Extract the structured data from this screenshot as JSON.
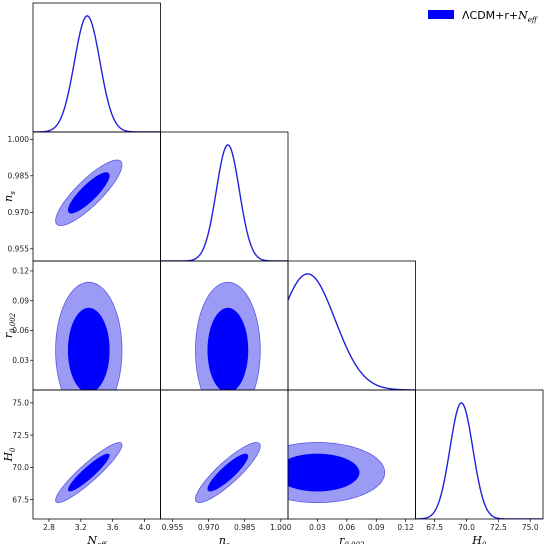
{
  "chart_data": {
    "type": "triangle",
    "parameters": [
      {
        "key": "Neff",
        "label": "N",
        "label_sub": "eff",
        "range": [
          2.6,
          4.2
        ],
        "ticks": [
          "2.8",
          "3.2",
          "3.6",
          "4.0"
        ],
        "tick_values": [
          2.8,
          3.2,
          3.6,
          4.0
        ]
      },
      {
        "key": "ns",
        "label": "n",
        "label_sub": "s",
        "range": [
          0.95,
          1.003
        ],
        "ticks": [
          "0.955",
          "0.970",
          "0.985",
          "1.000"
        ],
        "tick_values": [
          0.955,
          0.97,
          0.985,
          1.0
        ]
      },
      {
        "key": "r",
        "label": "r",
        "label_sub": "0.002",
        "range": [
          0.0,
          0.13
        ],
        "ticks": [
          "0.03",
          "0.06",
          "0.09",
          "0.12"
        ],
        "tick_values": [
          0.03,
          0.06,
          0.09,
          0.12
        ]
      },
      {
        "key": "H0",
        "label": "H",
        "label_sub": "0",
        "range": [
          66.0,
          76.0
        ],
        "ticks": [
          "67.5",
          "70.0",
          "72.5",
          "75.0"
        ],
        "tick_values": [
          67.5,
          70.0,
          72.5,
          75.0
        ]
      }
    ],
    "marginals": [
      {
        "param": "Neff",
        "distribution": "gaussian",
        "mean": 3.28,
        "sigma": 0.16
      },
      {
        "param": "ns",
        "distribution": "gaussian",
        "mean": 0.978,
        "sigma": 0.0048
      },
      {
        "param": "r",
        "distribution": "truncated-gaussian",
        "peak": 0.02,
        "sigma": 0.028
      },
      {
        "param": "H0",
        "distribution": "gaussian",
        "mean": 69.6,
        "sigma": 0.9
      }
    ],
    "contours": [
      {
        "x": "Neff",
        "y": "ns",
        "center": [
          3.3,
          0.978
        ],
        "sigma": [
          0.17,
          0.0055
        ],
        "correlation": 0.85
      },
      {
        "x": "Neff",
        "y": "r",
        "center": [
          3.3,
          0.04
        ],
        "sigma": [
          0.17,
          0.028
        ],
        "correlation": 0.0,
        "y_min": 0.0
      },
      {
        "x": "ns",
        "y": "r",
        "center": [
          0.978,
          0.04
        ],
        "sigma": [
          0.0055,
          0.028
        ],
        "correlation": 0.0,
        "y_min": 0.0
      },
      {
        "x": "Neff",
        "y": "H0",
        "center": [
          3.3,
          69.6
        ],
        "sigma": [
          0.17,
          0.95
        ],
        "correlation": 0.92
      },
      {
        "x": "ns",
        "y": "H0",
        "center": [
          0.978,
          69.6
        ],
        "sigma": [
          0.0055,
          0.95
        ],
        "correlation": 0.88
      },
      {
        "x": "r",
        "y": "H0",
        "center": [
          0.03,
          69.6
        ],
        "sigma": [
          0.028,
          0.95
        ],
        "correlation": 0.0,
        "x_min": 0.0
      }
    ],
    "levels": [
      "68%",
      "95%"
    ],
    "colors": {
      "inner": "#0000ff",
      "outer": "#9b9bf5",
      "outer_edge": "#5a5ae6",
      "line": "#2222dd"
    },
    "legend": {
      "label": "ΛCDM+r+",
      "label_math": "N",
      "label_sub": "eff",
      "color": "#0000ff",
      "position": "top-right"
    }
  }
}
